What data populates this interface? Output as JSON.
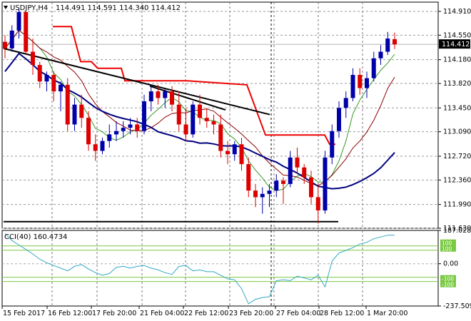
{
  "header": {
    "symbol_tf": "USDJPY,H4",
    "ohlc": "114.491 114.591 114.340 114.412"
  },
  "indicator": {
    "label": "CCI(40) 160.4734"
  },
  "chart_data": [
    {
      "type": "candlestick",
      "symbol": "USDJPY",
      "timeframe": "H4",
      "last_ohlc": {
        "open": 114.491,
        "high": 114.591,
        "low": 114.34,
        "close": 114.412
      },
      "current_price_label": "114.412",
      "ylim": [
        111.63,
        115.05
      ],
      "y_ticks": [
        "114.910",
        "114.550",
        "114.180",
        "113.820",
        "113.450",
        "113.090",
        "112.720",
        "112.360",
        "111.990",
        "111.630"
      ],
      "x_ticks": [
        "15 Feb 2017",
        "16 Feb 12:00",
        "17 Feb 20:00",
        "21 Feb 04:00",
        "22 Feb 12:00",
        "23 Feb 20:00",
        "27 Feb 04:00",
        "28 Feb 12:00",
        "1 Mar 20:00"
      ],
      "grid": true,
      "colors": {
        "bull": "#0000aa",
        "bear": "#dd0000",
        "ma_fast": "#3a9a2a",
        "ma_mid": "#8b0000",
        "ma_slow": "#000080",
        "stop_line": "#ee0000",
        "trend": "#000000"
      },
      "candles": [
        [
          114.45,
          114.55,
          114.2,
          114.35
        ],
        [
          114.35,
          114.7,
          114.3,
          114.62
        ],
        [
          114.62,
          114.95,
          114.5,
          114.9
        ],
        [
          114.9,
          114.92,
          114.25,
          114.3
        ],
        [
          114.3,
          114.5,
          113.95,
          114.1
        ],
        [
          114.1,
          114.15,
          113.75,
          113.85
        ],
        [
          113.85,
          114.0,
          113.7,
          113.95
        ],
        [
          113.95,
          114.0,
          113.55,
          113.7
        ],
        [
          113.7,
          113.85,
          113.4,
          113.8
        ],
        [
          113.8,
          113.9,
          113.1,
          113.2
        ],
        [
          113.2,
          113.6,
          113.1,
          113.5
        ],
        [
          113.5,
          113.65,
          113.15,
          113.3
        ],
        [
          113.3,
          113.4,
          112.8,
          112.9
        ],
        [
          112.9,
          113.05,
          112.65,
          112.8
        ],
        [
          112.8,
          113.0,
          112.75,
          112.95
        ],
        [
          112.95,
          113.2,
          112.85,
          113.05
        ],
        [
          113.05,
          113.25,
          112.95,
          113.1
        ],
        [
          113.1,
          113.25,
          113.0,
          113.15
        ],
        [
          113.15,
          113.3,
          113.05,
          113.2
        ],
        [
          113.2,
          113.3,
          113.0,
          113.1
        ],
        [
          113.1,
          113.65,
          113.05,
          113.55
        ],
        [
          113.55,
          113.8,
          113.4,
          113.7
        ],
        [
          113.7,
          113.8,
          113.5,
          113.6
        ],
        [
          113.6,
          113.75,
          113.45,
          113.7
        ],
        [
          113.7,
          113.78,
          113.4,
          113.5
        ],
        [
          113.5,
          113.7,
          113.1,
          113.2
        ],
        [
          113.2,
          113.45,
          112.95,
          113.05
        ],
        [
          113.05,
          113.55,
          113.0,
          113.5
        ],
        [
          113.5,
          113.65,
          113.2,
          113.3
        ],
        [
          113.3,
          113.45,
          113.15,
          113.25
        ],
        [
          113.25,
          113.35,
          113.05,
          113.2
        ],
        [
          113.2,
          113.35,
          112.7,
          112.8
        ],
        [
          112.8,
          112.95,
          112.6,
          112.75
        ],
        [
          112.75,
          112.95,
          112.65,
          112.9
        ],
        [
          112.9,
          113.0,
          112.5,
          112.6
        ],
        [
          112.6,
          112.7,
          112.1,
          112.2
        ],
        [
          112.2,
          112.3,
          111.95,
          112.1
        ],
        [
          112.1,
          112.25,
          111.85,
          112.15
        ],
        [
          112.15,
          112.3,
          111.95,
          112.2
        ],
        [
          112.2,
          112.45,
          112.1,
          112.35
        ],
        [
          112.35,
          112.4,
          112.0,
          112.3
        ],
        [
          112.3,
          112.8,
          112.25,
          112.7
        ],
        [
          112.7,
          112.85,
          112.45,
          112.55
        ],
        [
          112.55,
          112.6,
          112.3,
          112.4
        ],
        [
          112.4,
          112.5,
          112.0,
          112.1
        ],
        [
          112.1,
          112.3,
          111.7,
          111.9
        ],
        [
          111.9,
          112.8,
          111.85,
          112.7
        ],
        [
          112.7,
          113.2,
          112.6,
          113.1
        ],
        [
          113.1,
          113.55,
          113.0,
          113.45
        ],
        [
          113.45,
          113.7,
          113.3,
          113.6
        ],
        [
          113.6,
          114.05,
          113.55,
          113.95
        ],
        [
          113.95,
          114.05,
          113.65,
          113.75
        ],
        [
          113.75,
          114.0,
          113.6,
          113.9
        ],
        [
          113.9,
          114.3,
          113.85,
          114.2
        ],
        [
          114.2,
          114.4,
          114.1,
          114.3
        ],
        [
          114.3,
          114.6,
          114.25,
          114.5
        ],
        [
          114.49,
          114.59,
          114.34,
          114.41
        ]
      ],
      "cci": {
        "ylim": [
          -237.5093,
          187.0284
        ],
        "y_ticks": [
          "187.0284",
          "100",
          "100",
          "0.00",
          "-100",
          "-100",
          "-237.5093"
        ],
        "values": [
          170,
          130,
          105,
          80,
          55,
          25,
          5,
          -10,
          -25,
          -40,
          -15,
          -5,
          -30,
          -50,
          -65,
          -55,
          -20,
          -15,
          -25,
          -15,
          -10,
          -25,
          -35,
          -50,
          -60,
          -15,
          -10,
          -40,
          -35,
          -45,
          -45,
          -65,
          -85,
          -90,
          -140,
          -225,
          -200,
          -190,
          -185,
          -95,
          -90,
          -95,
          -70,
          -80,
          -90,
          -65,
          -130,
          15,
          60,
          75,
          90,
          110,
          120,
          140,
          150,
          160,
          160
        ]
      }
    }
  ]
}
